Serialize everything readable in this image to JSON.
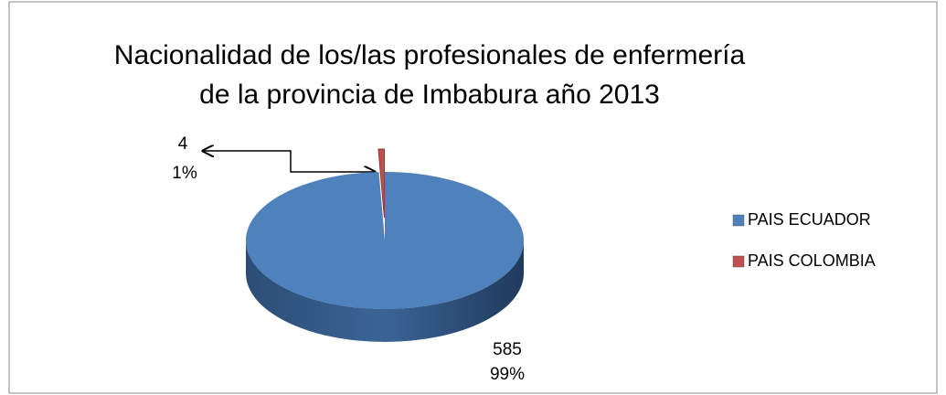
{
  "chart_data": {
    "type": "pie",
    "title_lines": [
      "Nacionalidad de los/las profesionales de enfermería",
      "de la provincia de Imbabura año 2013"
    ],
    "categories": [
      "PAIS ECUADOR",
      "PAIS COLOMBIA"
    ],
    "values": [
      585,
      4
    ],
    "percent_labels": [
      "99%",
      "1%"
    ],
    "colors": [
      "#4f81bd",
      "#c0504d"
    ],
    "legend": "right"
  }
}
